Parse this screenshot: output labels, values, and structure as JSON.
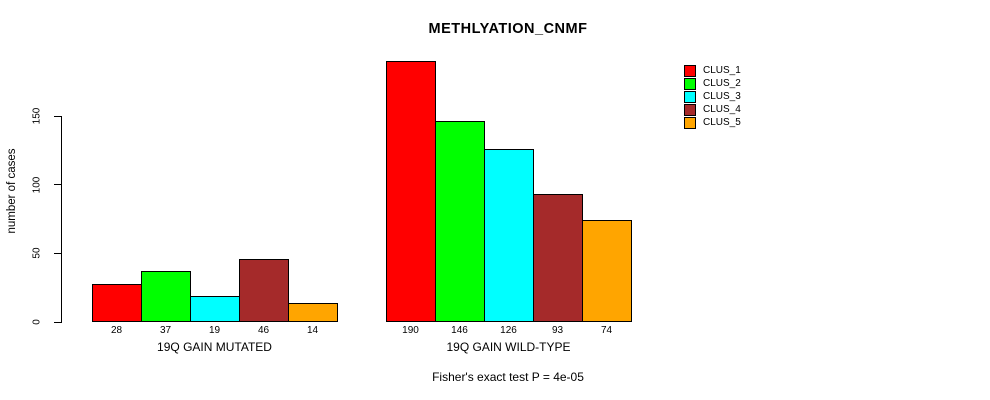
{
  "chart_data": {
    "type": "bar",
    "title": "METHLYATION_CNMF",
    "ylabel": "number of cases",
    "xlabel": "",
    "ylim": [
      0,
      150
    ],
    "yticks": [
      0,
      50,
      100,
      150
    ],
    "grid": false,
    "legend_position": "top-right",
    "categories": [
      "19Q GAIN MUTATED",
      "19Q GAIN WILD-TYPE"
    ],
    "series": [
      {
        "name": "CLUS_1",
        "color": "#FF0000",
        "values": [
          28,
          190
        ]
      },
      {
        "name": "CLUS_2",
        "color": "#00FF00",
        "values": [
          37,
          146
        ]
      },
      {
        "name": "CLUS_3",
        "color": "#00FFFF",
        "values": [
          19,
          126
        ]
      },
      {
        "name": "CLUS_4",
        "color": "#A52A2A",
        "values": [
          46,
          93
        ]
      },
      {
        "name": "CLUS_5",
        "color": "#FFA500",
        "values": [
          14,
          74
        ]
      }
    ],
    "bar_value_labels_shown": true,
    "annotation": "Fisher's exact test P = 4e-05",
    "text_color": "#000000",
    "background_color": "#FFFFFF"
  }
}
